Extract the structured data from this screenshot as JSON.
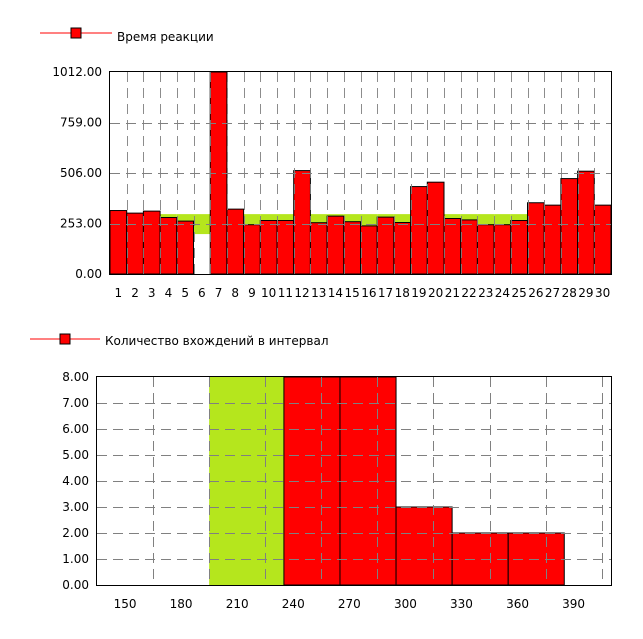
{
  "colors": {
    "bar": "#ff0000",
    "highlight": "#b5e61d",
    "grid": "#808080",
    "frame": "#000000"
  },
  "chart_data": [
    {
      "type": "bar",
      "legend": "Время реакции",
      "categories": [
        "1",
        "2",
        "3",
        "4",
        "5",
        "6",
        "7",
        "8",
        "9",
        "10",
        "11",
        "12",
        "13",
        "14",
        "15",
        "16",
        "17",
        "18",
        "19",
        "20",
        "21",
        "22",
        "23",
        "24",
        "25",
        "26",
        "27",
        "28",
        "29",
        "30"
      ],
      "values": [
        318,
        305,
        315,
        283,
        265,
        0,
        1012,
        325,
        247,
        268,
        268,
        518,
        257,
        290,
        262,
        241,
        285,
        258,
        438,
        460,
        278,
        271,
        247,
        247,
        268,
        357,
        345,
        478,
        515,
        345
      ],
      "highlight_band": {
        "from": 200,
        "to": 300,
        "categories": [
          "4",
          "5",
          "6",
          "9",
          "10",
          "11",
          "13",
          "14",
          "15",
          "16",
          "17",
          "18",
          "21",
          "22",
          "23",
          "24",
          "25"
        ]
      },
      "yticks": [
        "0.00",
        "253.00",
        "506.00",
        "759.00",
        "1012.00"
      ],
      "ylim": [
        0,
        1012
      ],
      "grid": true
    },
    {
      "type": "bar",
      "legend": "Количество вхождений в интервал",
      "xticks": [
        "150",
        "180",
        "210",
        "240",
        "270",
        "300",
        "330",
        "360",
        "390"
      ],
      "bins": [
        {
          "from": 195,
          "to": 235,
          "value": 8,
          "highlight": true
        },
        {
          "from": 235,
          "to": 265,
          "value": 8,
          "highlight": false
        },
        {
          "from": 265,
          "to": 295,
          "value": 8,
          "highlight": false
        },
        {
          "from": 295,
          "to": 325,
          "value": 3,
          "highlight": false
        },
        {
          "from": 325,
          "to": 355,
          "value": 2,
          "highlight": false
        },
        {
          "from": 355,
          "to": 385,
          "value": 2,
          "highlight": false
        }
      ],
      "yticks": [
        "0.00",
        "1.00",
        "2.00",
        "3.00",
        "4.00",
        "5.00",
        "6.00",
        "7.00",
        "8.00"
      ],
      "ylim": [
        0,
        8
      ],
      "xlim": [
        135,
        410
      ],
      "grid": true
    }
  ]
}
